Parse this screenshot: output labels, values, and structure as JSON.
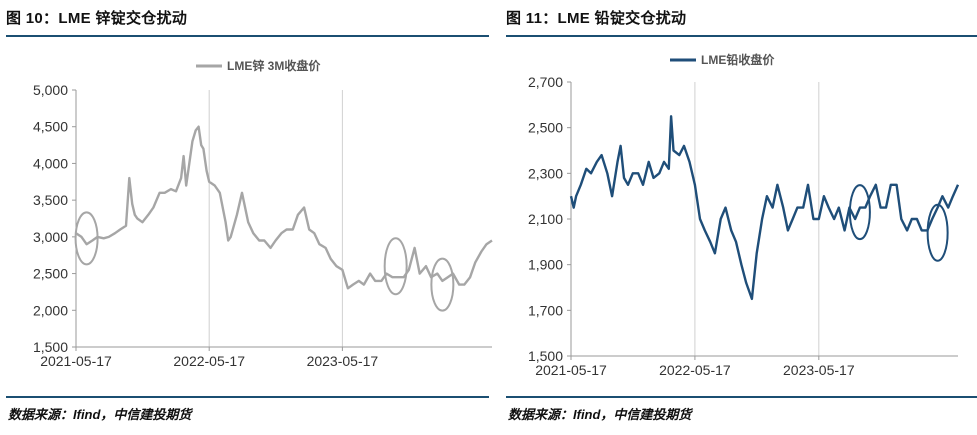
{
  "charts": [
    {
      "title": "图 10：LME 锌锭交仓扰动",
      "source": "数据来源：Ifind，中信建投期货",
      "chart_data": {
        "type": "line",
        "title": "图 10：LME 锌锭交仓扰动",
        "legend": "top-center",
        "grid": "vertical-major",
        "ylim": [
          1500,
          5000
        ],
        "yticks": [
          "1,500",
          "2,000",
          "2,500",
          "3,000",
          "3,500",
          "4,000",
          "4,500",
          "5,000"
        ],
        "xticks": [
          "2021-05-17",
          "2022-05-17",
          "2023-05-17"
        ],
        "xlim": [
          "2021-05-17",
          "2024-06-30"
        ],
        "series": [
          {
            "name": "LME锌 3M收盘价",
            "color": "#a6a6a6",
            "x": [
              "2021-05-17",
              "2021-06-01",
              "2021-06-15",
              "2021-07-01",
              "2021-07-15",
              "2021-08-01",
              "2021-08-15",
              "2021-09-01",
              "2021-09-15",
              "2021-10-01",
              "2021-10-10",
              "2021-10-18",
              "2021-10-25",
              "2021-11-01",
              "2021-11-15",
              "2021-12-01",
              "2021-12-15",
              "2022-01-01",
              "2022-01-15",
              "2022-02-01",
              "2022-02-15",
              "2022-03-01",
              "2022-03-08",
              "2022-03-15",
              "2022-04-01",
              "2022-04-10",
              "2022-04-18",
              "2022-04-25",
              "2022-05-01",
              "2022-05-10",
              "2022-05-17",
              "2022-06-01",
              "2022-06-15",
              "2022-07-01",
              "2022-07-08",
              "2022-07-15",
              "2022-08-01",
              "2022-08-15",
              "2022-09-01",
              "2022-09-15",
              "2022-10-01",
              "2022-10-15",
              "2022-11-01",
              "2022-11-15",
              "2022-12-01",
              "2022-12-15",
              "2023-01-01",
              "2023-01-15",
              "2023-02-01",
              "2023-02-15",
              "2023-03-01",
              "2023-03-15",
              "2023-04-01",
              "2023-04-15",
              "2023-05-01",
              "2023-05-17",
              "2023-06-01",
              "2023-06-15",
              "2023-07-01",
              "2023-07-15",
              "2023-08-01",
              "2023-08-15",
              "2023-09-01",
              "2023-09-15",
              "2023-10-01",
              "2023-10-15",
              "2023-11-01",
              "2023-11-15",
              "2023-12-01",
              "2023-12-15",
              "2024-01-01",
              "2024-01-15",
              "2024-02-01",
              "2024-02-15",
              "2024-03-01",
              "2024-03-15",
              "2024-04-01",
              "2024-04-15",
              "2024-05-01",
              "2024-05-15",
              "2024-06-01",
              "2024-06-15",
              "2024-06-30"
            ],
            "values": [
              3050,
              3000,
              2900,
              2950,
              3000,
              2980,
              3000,
              3050,
              3100,
              3150,
              3800,
              3450,
              3300,
              3250,
              3200,
              3300,
              3400,
              3600,
              3600,
              3650,
              3620,
              3800,
              4100,
              3700,
              4300,
              4450,
              4500,
              4250,
              4200,
              3900,
              3750,
              3700,
              3600,
              3200,
              2950,
              3000,
              3300,
              3600,
              3200,
              3050,
              2950,
              2950,
              2850,
              2950,
              3050,
              3100,
              3100,
              3300,
              3400,
              3100,
              3050,
              2900,
              2850,
              2700,
              2600,
              2550,
              2300,
              2350,
              2400,
              2350,
              2500,
              2400,
              2400,
              2500,
              2450,
              2450,
              2450,
              2550,
              2850,
              2500,
              2600,
              2450,
              2500,
              2400,
              2450,
              2500,
              2350,
              2350,
              2450,
              2650,
              2800,
              2900,
              2950
            ]
          }
        ],
        "annotations": [
          "ellipse",
          "ellipse",
          "ellipse"
        ]
      }
    },
    {
      "title": "图 11：LME 铅锭交仓扰动",
      "source": "数据来源：Ifind，中信建投期货",
      "chart_data": {
        "type": "line",
        "title": "图 11：LME 铅锭交仓扰动",
        "legend": "top-center",
        "grid": "vertical-major",
        "ylim": [
          1500,
          2700
        ],
        "yticks": [
          "1,500",
          "1,700",
          "1,900",
          "2,100",
          "2,300",
          "2,500",
          "2,700"
        ],
        "xticks": [
          "2021-05-17",
          "2022-05-17",
          "2023-05-17"
        ],
        "xlim": [
          "2021-05-17",
          "2024-06-30"
        ],
        "series": [
          {
            "name": "LME铅收盘价",
            "color": "#1f4e79",
            "x": [
              "2021-05-17",
              "2021-05-25",
              "2021-06-01",
              "2021-06-15",
              "2021-07-01",
              "2021-07-15",
              "2021-08-01",
              "2021-08-15",
              "2021-09-01",
              "2021-09-15",
              "2021-10-01",
              "2021-10-10",
              "2021-10-20",
              "2021-11-01",
              "2021-11-15",
              "2021-12-01",
              "2021-12-15",
              "2022-01-01",
              "2022-01-15",
              "2022-02-01",
              "2022-02-15",
              "2022-03-01",
              "2022-03-08",
              "2022-03-15",
              "2022-04-01",
              "2022-04-15",
              "2022-05-01",
              "2022-05-17",
              "2022-06-01",
              "2022-06-15",
              "2022-07-01",
              "2022-07-15",
              "2022-08-01",
              "2022-08-15",
              "2022-09-01",
              "2022-09-15",
              "2022-10-01",
              "2022-10-15",
              "2022-11-01",
              "2022-11-15",
              "2022-12-01",
              "2022-12-15",
              "2023-01-01",
              "2023-01-15",
              "2023-02-01",
              "2023-02-15",
              "2023-03-01",
              "2023-03-15",
              "2023-04-01",
              "2023-04-15",
              "2023-05-01",
              "2023-05-17",
              "2023-06-01",
              "2023-06-15",
              "2023-07-01",
              "2023-07-15",
              "2023-08-01",
              "2023-08-15",
              "2023-09-01",
              "2023-09-15",
              "2023-10-01",
              "2023-10-15",
              "2023-11-01",
              "2023-11-15",
              "2023-12-01",
              "2023-12-15",
              "2024-01-01",
              "2024-01-15",
              "2024-02-01",
              "2024-02-15",
              "2024-03-01",
              "2024-03-15",
              "2024-04-01",
              "2024-04-15",
              "2024-05-01",
              "2024-05-15",
              "2024-06-01",
              "2024-06-15",
              "2024-06-30"
            ],
            "values": [
              2200,
              2150,
              2200,
              2250,
              2320,
              2300,
              2350,
              2380,
              2300,
              2200,
              2350,
              2420,
              2280,
              2250,
              2300,
              2300,
              2250,
              2350,
              2280,
              2300,
              2350,
              2320,
              2550,
              2400,
              2380,
              2420,
              2350,
              2250,
              2100,
              2050,
              2000,
              1950,
              2100,
              2150,
              2050,
              2000,
              1900,
              1820,
              1750,
              1950,
              2100,
              2200,
              2150,
              2250,
              2150,
              2050,
              2100,
              2150,
              2150,
              2250,
              2100,
              2100,
              2200,
              2150,
              2100,
              2150,
              2050,
              2150,
              2100,
              2150,
              2150,
              2200,
              2250,
              2150,
              2150,
              2250,
              2250,
              2100,
              2050,
              2100,
              2100,
              2050,
              2050,
              2100,
              2150,
              2200,
              2150,
              2200,
              2250
            ]
          }
        ],
        "annotations": [
          "ellipse",
          "ellipse"
        ]
      }
    }
  ]
}
